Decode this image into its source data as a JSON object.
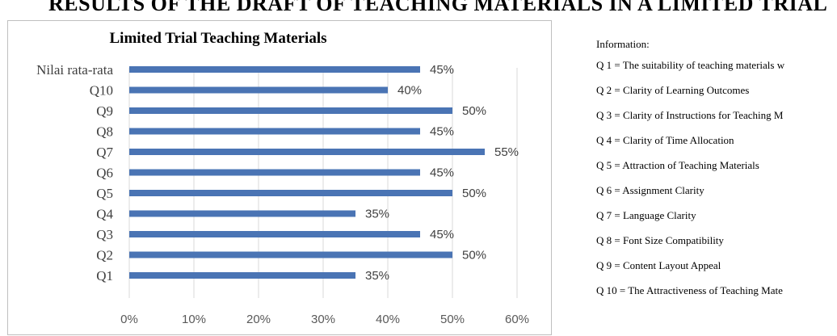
{
  "page": {
    "heading": "RESULTS OF THE DRAFT OF TEACHING MATERIALS IN A LIMITED TRIAL"
  },
  "chart_data": {
    "type": "bar",
    "orientation": "horizontal",
    "title": "Limited Trial Teaching Materials",
    "categories": [
      "Nilai rata-rata",
      "Q10",
      "Q9",
      "Q8",
      "Q7",
      "Q6",
      "Q5",
      "Q4",
      "Q3",
      "Q2",
      "Q1"
    ],
    "values": [
      45,
      40,
      50,
      45,
      55,
      45,
      50,
      35,
      45,
      50,
      35
    ],
    "value_labels": [
      "45%",
      "40%",
      "50%",
      "45%",
      "55%",
      "45%",
      "50%",
      "35%",
      "45%",
      "50%",
      "35%"
    ],
    "xlim": [
      0,
      60
    ],
    "xticks": [
      "0%",
      "10%",
      "20%",
      "30%",
      "40%",
      "50%",
      "60%"
    ],
    "grid": true,
    "bar_color": "#4a74b4"
  },
  "info": {
    "title": "Information:",
    "items": [
      "Q 1 = The suitability of teaching materials w",
      "Q 2 = Clarity of Learning Outcomes",
      "Q 3 = Clarity of Instructions for Teaching M",
      "Q 4 = Clarity of Time Allocation",
      "Q 5 = Attraction of Teaching Materials",
      "Q 6 = Assignment Clarity",
      "Q 7 = Language Clarity",
      "Q 8 = Font Size Compatibility",
      "Q 9 = Content Layout Appeal",
      "Q 10 = The Attractiveness of Teaching Mate"
    ]
  }
}
